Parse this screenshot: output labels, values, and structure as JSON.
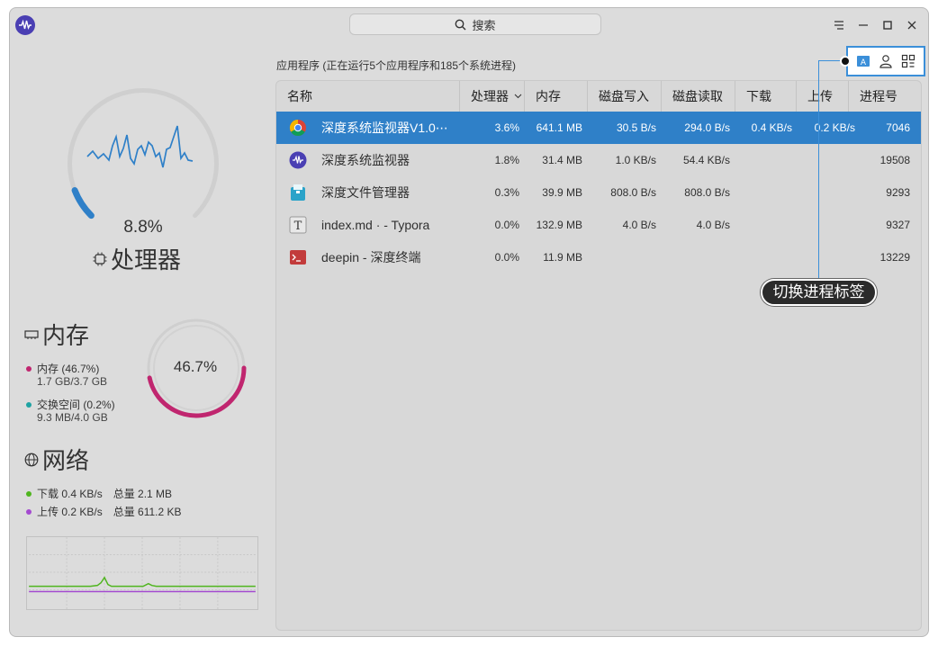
{
  "titlebar": {
    "search_label": "搜索"
  },
  "sidebar": {
    "cpu": {
      "value": "8.8%",
      "title": "处理器",
      "level": 0.088
    },
    "memory": {
      "title": "内存",
      "ring_value": "46.7%",
      "level": 0.467,
      "mem_label": "内存 (46.7%)",
      "mem_detail": "1.7 GB/3.7 GB",
      "swap_label": "交换空间 (0.2%)",
      "swap_detail": "9.3 MB/4.0 GB"
    },
    "network": {
      "title": "网络",
      "download_label": "下载 0.4 KB/s",
      "download_total": "总量 2.1 MB",
      "upload_label": "上传 0.2 KB/s",
      "upload_total": "总量 611.2 KB"
    }
  },
  "main": {
    "summary": "应用程序 (正在运行5个应用程序和185个系统进程)",
    "columns": [
      "名称",
      "处理器",
      "内存",
      "磁盘写入",
      "磁盘读取",
      "下载",
      "上传",
      "进程号"
    ],
    "rows": [
      {
        "name": "深度系统监视器V1.0⋯",
        "cpu": "3.6%",
        "mem": "641.1 MB",
        "write": "30.5 B/s",
        "read": "294.0 B/s",
        "down": "0.4 KB/s",
        "up": "0.2 KB/s",
        "pid": "7046"
      },
      {
        "name": "深度系统监视器",
        "cpu": "1.8%",
        "mem": "31.4 MB",
        "write": "1.0 KB/s",
        "read": "54.4 KB/s",
        "down": "",
        "up": "",
        "pid": "19508"
      },
      {
        "name": "深度文件管理器",
        "cpu": "0.3%",
        "mem": "39.9 MB",
        "write": "808.0 B/s",
        "read": "808.0 B/s",
        "down": "",
        "up": "",
        "pid": "9293"
      },
      {
        "name": "index.md ·  - Typora",
        "cpu": "0.0%",
        "mem": "132.9 MB",
        "write": "4.0 B/s",
        "read": "4.0 B/s",
        "down": "",
        "up": "",
        "pid": "9327"
      },
      {
        "name": "deepin - 深度终端",
        "cpu": "0.0%",
        "mem": "11.9 MB",
        "write": "",
        "read": "",
        "down": "",
        "up": "",
        "pid": "13229"
      }
    ]
  },
  "callout": {
    "label": "切换进程标签"
  },
  "colors": {
    "selected_row": "#2f80c8",
    "cpu_gauge": "#2f80c8",
    "memory": "#c0266f",
    "swap": "#1ea3a3",
    "download": "#4fb51e",
    "upload": "#a44ad0",
    "highlight": "#3b8fd9"
  },
  "icons": [
    "app-logo-icon",
    "search-icon",
    "menu-icon",
    "minimize-icon",
    "maximize-icon",
    "close-icon",
    "chip-icon",
    "memory-icon",
    "globe-icon",
    "apps-icon",
    "user-icon",
    "all-processes-icon",
    "sort-desc-icon",
    "chrome-icon",
    "monitor-icon",
    "file-manager-icon",
    "typora-icon",
    "terminal-icon"
  ]
}
